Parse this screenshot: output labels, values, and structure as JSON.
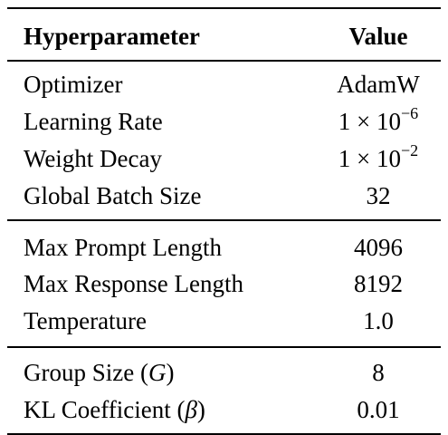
{
  "table": {
    "header": {
      "param": "Hyperparameter",
      "value": "Value"
    },
    "groups": [
      {
        "rows": [
          {
            "param": "Optimizer",
            "value": "AdamW"
          },
          {
            "param": "Learning Rate",
            "value_mantissa": "1 × 10",
            "value_exp": "−6"
          },
          {
            "param": "Weight Decay",
            "value_mantissa": "1 × 10",
            "value_exp": "−2"
          },
          {
            "param": "Global Batch Size",
            "value": "32"
          }
        ]
      },
      {
        "rows": [
          {
            "param": "Max Prompt Length",
            "value": "4096"
          },
          {
            "param": "Max Response Length",
            "value": "8192"
          },
          {
            "param": "Temperature",
            "value": "1.0"
          }
        ]
      },
      {
        "rows": [
          {
            "param_prefix": "Group Size (",
            "param_symbol": "G",
            "param_suffix": ")",
            "value": "8"
          },
          {
            "param_prefix": "KL Coefficient (",
            "param_symbol": "β",
            "param_suffix": ")",
            "value": "0.01"
          }
        ]
      }
    ]
  }
}
